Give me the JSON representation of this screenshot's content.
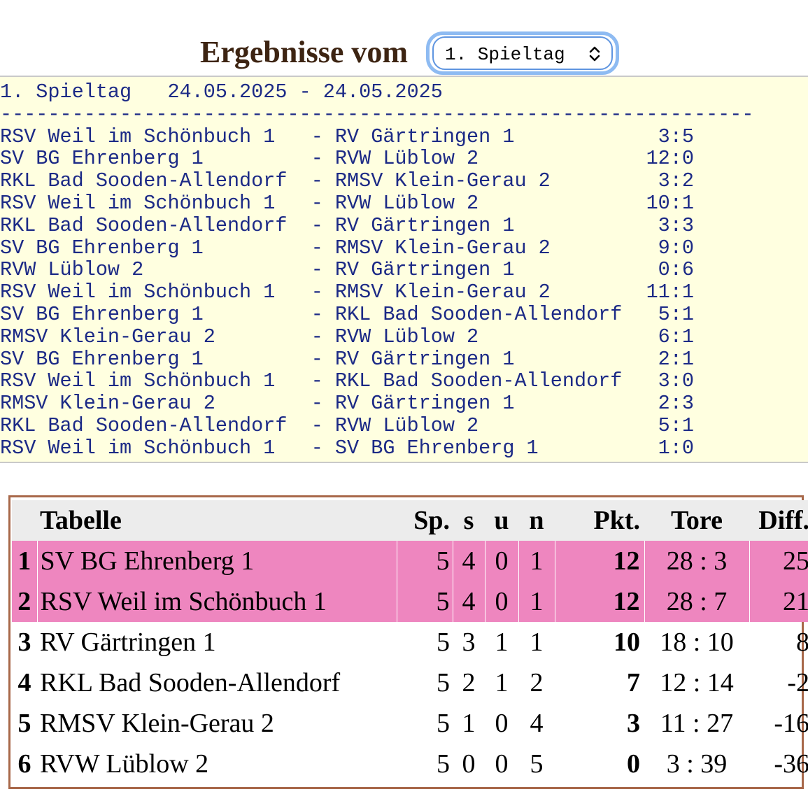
{
  "heading": {
    "title": "Ergebnisse vom",
    "select_value": "1. Spieltag",
    "select_icon": "chevron-up-down-icon"
  },
  "results": {
    "header": "1. Spieltag   24.05.2025 - 24.05.2025",
    "separator": "---------------------------------------------------------------",
    "matches": [
      {
        "home": "RSV Weil im Schönbuch 1",
        "away": "RV Gärtringen 1",
        "score": "3:5"
      },
      {
        "home": "SV BG Ehrenberg 1",
        "away": "RVW Lüblow 2",
        "score": "12:0"
      },
      {
        "home": "RKL Bad Sooden-Allendorf",
        "away": "RMSV Klein-Gerau 2",
        "score": "3:2"
      },
      {
        "home": "RSV Weil im Schönbuch 1",
        "away": "RVW Lüblow 2",
        "score": "10:1"
      },
      {
        "home": "RKL Bad Sooden-Allendorf",
        "away": "RV Gärtringen 1",
        "score": "3:3"
      },
      {
        "home": "SV BG Ehrenberg 1",
        "away": "RMSV Klein-Gerau 2",
        "score": "9:0"
      },
      {
        "home": "RVW Lüblow 2",
        "away": "RV Gärtringen 1",
        "score": "0:6"
      },
      {
        "home": "RSV Weil im Schönbuch 1",
        "away": "RMSV Klein-Gerau 2",
        "score": "11:1"
      },
      {
        "home": "SV BG Ehrenberg 1",
        "away": "RKL Bad Sooden-Allendorf",
        "score": "5:1"
      },
      {
        "home": "RMSV Klein-Gerau 2",
        "away": "RVW Lüblow 2",
        "score": "6:1"
      },
      {
        "home": "SV BG Ehrenberg 1",
        "away": "RV Gärtringen 1",
        "score": "2:1"
      },
      {
        "home": "RSV Weil im Schönbuch 1",
        "away": "RKL Bad Sooden-Allendorf",
        "score": "3:0"
      },
      {
        "home": "RMSV Klein-Gerau 2",
        "away": "RV Gärtringen 1",
        "score": "2:3"
      },
      {
        "home": "RKL Bad Sooden-Allendorf",
        "away": "RVW Lüblow 2",
        "score": "5:1"
      },
      {
        "home": "RSV Weil im Schönbuch 1",
        "away": "SV BG Ehrenberg 1",
        "score": "1:0"
      }
    ]
  },
  "standings": {
    "headers": {
      "table": "Tabelle",
      "sp": "Sp.",
      "s": "s",
      "u": "u",
      "n": "n",
      "pkt": "Pkt.",
      "tore": "Tore",
      "diff": "Diff."
    },
    "highlight_color": "#ee86bf",
    "rows": [
      {
        "rank": "1",
        "team": "SV BG Ehrenberg 1",
        "sp": "5",
        "s": "4",
        "u": "0",
        "n": "1",
        "pkt": "12",
        "tore": "28 : 3",
        "diff": "25",
        "highlighted": true
      },
      {
        "rank": "2",
        "team": "RSV Weil im Schönbuch 1",
        "sp": "5",
        "s": "4",
        "u": "0",
        "n": "1",
        "pkt": "12",
        "tore": "28 : 7",
        "diff": "21",
        "highlighted": true
      },
      {
        "rank": "3",
        "team": "RV Gärtringen 1",
        "sp": "5",
        "s": "3",
        "u": "1",
        "n": "1",
        "pkt": "10",
        "tore": "18 : 10",
        "diff": "8",
        "highlighted": false
      },
      {
        "rank": "4",
        "team": "RKL Bad Sooden-Allendorf",
        "sp": "5",
        "s": "2",
        "u": "1",
        "n": "2",
        "pkt": "7",
        "tore": "12 : 14",
        "diff": "-2",
        "highlighted": false
      },
      {
        "rank": "5",
        "team": "RMSV Klein-Gerau 2",
        "sp": "5",
        "s": "1",
        "u": "0",
        "n": "4",
        "pkt": "3",
        "tore": "11 : 27",
        "diff": "-16",
        "highlighted": false
      },
      {
        "rank": "6",
        "team": "RVW Lüblow 2",
        "sp": "5",
        "s": "0",
        "u": "0",
        "n": "5",
        "pkt": "0",
        "tore": "3 : 39",
        "diff": "-36",
        "highlighted": false
      }
    ]
  }
}
